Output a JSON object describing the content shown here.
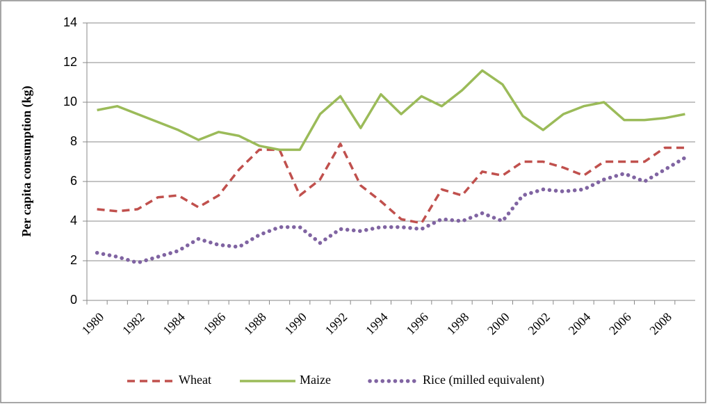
{
  "chart_data": {
    "type": "line",
    "y_label": "Per capita consumption (kg)",
    "categories": [
      "1980",
      null,
      "1982",
      null,
      "1984",
      null,
      "1986",
      null,
      "1988",
      null,
      "1990",
      null,
      "1992",
      null,
      "1994",
      null,
      "1996",
      null,
      "1998",
      null,
      "2000",
      null,
      "2002",
      null,
      "2004",
      null,
      "2006",
      null,
      "2008",
      null
    ],
    "series": [
      {
        "name": "Wheat",
        "color": "#c0504d",
        "style": "dashed",
        "values": [
          4.6,
          4.5,
          4.6,
          5.2,
          5.3,
          4.7,
          5.3,
          6.6,
          7.6,
          7.6,
          5.3,
          6.1,
          7.9,
          5.8,
          5.0,
          4.1,
          3.9,
          5.6,
          5.3,
          6.5,
          6.3,
          7.0,
          7.0,
          6.7,
          6.3,
          7.0,
          7.0,
          7.0,
          7.7,
          7.7
        ]
      },
      {
        "name": "Maize",
        "color": "#9bbb59",
        "style": "solid",
        "values": [
          9.6,
          9.8,
          9.4,
          9.0,
          8.6,
          8.1,
          8.5,
          8.3,
          7.8,
          7.6,
          7.6,
          9.4,
          10.3,
          8.7,
          10.4,
          9.4,
          10.3,
          9.8,
          10.6,
          11.6,
          10.9,
          9.3,
          8.6,
          9.4,
          9.8,
          10.0,
          9.1,
          9.1,
          9.2,
          9.4
        ]
      },
      {
        "name": "Rice (milled equivalent)",
        "color": "#8064a2",
        "style": "dotted",
        "values": [
          2.4,
          2.2,
          1.9,
          2.2,
          2.5,
          3.1,
          2.8,
          2.7,
          3.3,
          3.7,
          3.7,
          2.9,
          3.6,
          3.5,
          3.7,
          3.7,
          3.6,
          4.1,
          4.0,
          4.4,
          4.0,
          5.3,
          5.6,
          5.5,
          5.6,
          6.1,
          6.4,
          6.0,
          6.6,
          7.2
        ]
      }
    ],
    "ylim": [
      0,
      14
    ],
    "yticks": [
      0,
      2,
      4,
      6,
      8,
      10,
      12,
      14
    ],
    "grid": true,
    "legend": "bottom"
  }
}
